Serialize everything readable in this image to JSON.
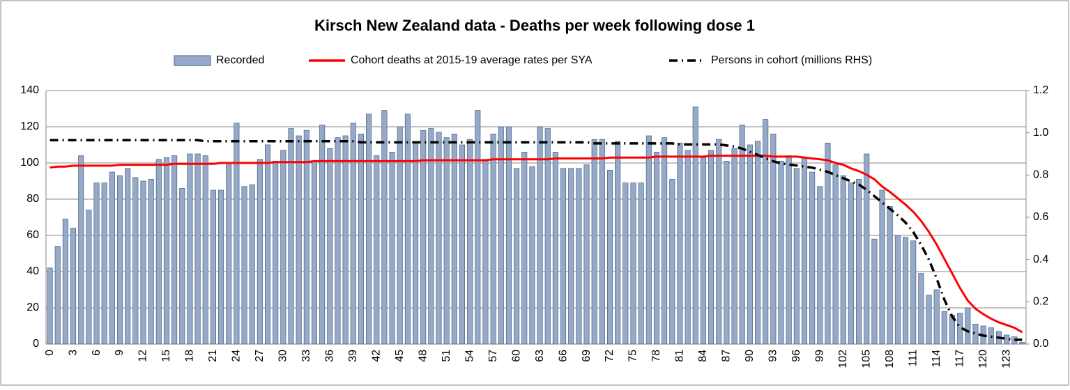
{
  "chart_data": {
    "type": "bar",
    "title": "Kirsch New Zealand data - Deaths per week following dose 1",
    "categories": [
      "0",
      null,
      null,
      "3",
      null,
      null,
      "6",
      null,
      null,
      "9",
      null,
      null,
      "12",
      null,
      null,
      "15",
      null,
      null,
      "18",
      null,
      null,
      "21",
      null,
      null,
      "24",
      null,
      null,
      "27",
      null,
      null,
      "30",
      null,
      null,
      "33",
      null,
      null,
      "36",
      null,
      null,
      "39",
      null,
      null,
      "42",
      null,
      null,
      "45",
      null,
      null,
      "48",
      null,
      null,
      "51",
      null,
      null,
      "54",
      null,
      null,
      "57",
      null,
      null,
      "60",
      null,
      null,
      "63",
      null,
      null,
      "66",
      null,
      null,
      "69",
      null,
      null,
      "72",
      null,
      null,
      "75",
      null,
      null,
      "78",
      null,
      null,
      "81",
      null,
      null,
      "84",
      null,
      null,
      "87",
      null,
      null,
      "90",
      null,
      null,
      "93",
      null,
      null,
      "96",
      null,
      null,
      "99",
      null,
      null,
      "102",
      null,
      null,
      "105",
      null,
      null,
      "108",
      null,
      null,
      "111",
      null,
      null,
      "114",
      null,
      null,
      "117",
      null,
      null,
      "120",
      null,
      null,
      "123",
      null,
      null
    ],
    "series": [
      {
        "name": "Recorded",
        "type": "bar",
        "color": "#95a9c9",
        "edge": "#4a5f80",
        "values": [
          42,
          54,
          69,
          64,
          104,
          74,
          89,
          89,
          95,
          93,
          97,
          92,
          90,
          91,
          102,
          103,
          104,
          86,
          105,
          105,
          104,
          85,
          85,
          99,
          122,
          87,
          88,
          102,
          110,
          101,
          107,
          119,
          115,
          118,
          101,
          121,
          108,
          114,
          115,
          122,
          116,
          127,
          104,
          129,
          106,
          120,
          127,
          111,
          118,
          119,
          117,
          114,
          116,
          110,
          113,
          129,
          102,
          116,
          120,
          120,
          97,
          106,
          98,
          120,
          119,
          106,
          97,
          97,
          97,
          99,
          113,
          113,
          96,
          112,
          89,
          89,
          89,
          115,
          106,
          114,
          91,
          111,
          107,
          131,
          103,
          107,
          113,
          101,
          108,
          121,
          110,
          112,
          124,
          116,
          101,
          104,
          97,
          103,
          95,
          87,
          111,
          99,
          93,
          89,
          91,
          105,
          58,
          85,
          76,
          60,
          59,
          57,
          39,
          27,
          30,
          18,
          16,
          17,
          20,
          11,
          10,
          9,
          7,
          5,
          4,
          1
        ]
      },
      {
        "name": "Cohort deaths at 2015-19 average rates per SYA",
        "type": "line",
        "color": "#ff0000",
        "dash": "solid",
        "values": [
          97.5,
          98,
          98,
          98.5,
          98.5,
          98.5,
          98.5,
          98.5,
          98.5,
          99,
          99,
          99,
          99,
          99,
          99,
          99,
          99.5,
          99.5,
          99.5,
          99.5,
          99.5,
          99.5,
          100,
          100,
          100,
          100,
          100,
          100,
          100,
          100.5,
          100.5,
          100.5,
          100.5,
          100.5,
          101,
          101,
          101,
          101,
          101,
          101,
          101,
          101,
          101,
          101,
          101,
          101,
          101,
          101,
          101.5,
          101.5,
          101.5,
          101.5,
          101.5,
          101.5,
          101.5,
          101.5,
          101.5,
          102,
          102,
          102,
          102,
          102,
          102,
          102,
          102,
          102.5,
          102.5,
          102.5,
          102.5,
          102.5,
          102.5,
          102.5,
          103,
          103,
          103,
          103,
          103,
          103,
          103.5,
          103.5,
          103.5,
          103.5,
          103.5,
          103.5,
          103.5,
          104,
          104,
          104,
          104,
          104,
          104,
          104,
          104,
          103.5,
          103.5,
          103.5,
          103.5,
          103,
          102.5,
          102,
          101.5,
          100,
          99,
          97,
          95.5,
          93.5,
          91,
          87,
          84,
          80.5,
          77,
          73,
          68,
          62,
          55,
          47,
          39,
          31,
          24,
          19.5,
          16.5,
          14,
          12,
          10.5,
          9,
          6.5
        ]
      },
      {
        "name": "Persons in cohort (millions RHS)",
        "type": "line",
        "axis": "y2",
        "color": "#000000",
        "dash": "dashdot",
        "values": [
          0.965,
          0.965,
          0.965,
          0.965,
          0.965,
          0.965,
          0.965,
          0.965,
          0.965,
          0.965,
          0.965,
          0.965,
          0.965,
          0.965,
          0.965,
          0.965,
          0.965,
          0.965,
          0.965,
          0.965,
          0.96,
          0.96,
          0.96,
          0.96,
          0.96,
          0.96,
          0.96,
          0.96,
          0.96,
          0.96,
          0.96,
          0.96,
          0.96,
          0.96,
          0.96,
          0.96,
          0.96,
          0.96,
          0.96,
          0.96,
          0.955,
          0.955,
          0.955,
          0.955,
          0.955,
          0.955,
          0.955,
          0.955,
          0.955,
          0.955,
          0.955,
          0.955,
          0.955,
          0.955,
          0.955,
          0.955,
          0.955,
          0.955,
          0.955,
          0.955,
          0.955,
          0.955,
          0.955,
          0.955,
          0.955,
          0.955,
          0.955,
          0.955,
          0.955,
          0.955,
          0.95,
          0.95,
          0.95,
          0.95,
          0.95,
          0.95,
          0.95,
          0.95,
          0.95,
          0.95,
          0.95,
          0.945,
          0.945,
          0.945,
          0.945,
          0.945,
          0.945,
          0.94,
          0.935,
          0.925,
          0.91,
          0.895,
          0.88,
          0.865,
          0.855,
          0.85,
          0.845,
          0.84,
          0.835,
          0.825,
          0.815,
          0.8,
          0.785,
          0.77,
          0.755,
          0.73,
          0.7,
          0.67,
          0.64,
          0.61,
          0.575,
          0.53,
          0.47,
          0.4,
          0.31,
          0.21,
          0.13,
          0.08,
          0.06,
          0.05,
          0.04,
          0.035,
          0.03,
          0.025,
          0.02,
          0.02
        ]
      }
    ],
    "ylim": [
      0,
      140
    ],
    "yticks": [
      0,
      20,
      40,
      60,
      80,
      100,
      120,
      140
    ],
    "y2lim": [
      0,
      1.2
    ],
    "y2ticks": [
      {
        "value": 0,
        "label": "0.0"
      },
      0.2,
      0.4,
      0.6,
      0.8,
      {
        "value": 1,
        "label": "1.0"
      },
      1.2
    ],
    "grid": true,
    "legend": "top"
  }
}
